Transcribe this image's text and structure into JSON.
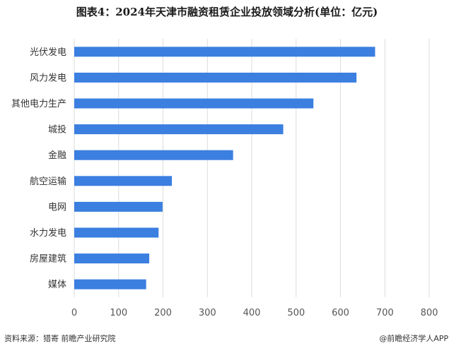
{
  "chart_data": {
    "type": "bar",
    "orientation": "horizontal",
    "title": "图表4：2024年天津市融资租赁企业投放领域分析(单位：亿元)",
    "categories": [
      "光伏发电",
      "风力发电",
      "其他电力生产",
      "城投",
      "金融",
      "航空运输",
      "电网",
      "水力发电",
      "房屋建筑",
      "媒体"
    ],
    "values": [
      678,
      636,
      539,
      471,
      358,
      220,
      199,
      190,
      169,
      162
    ],
    "xlim": [
      0,
      800
    ],
    "xticks": [
      0,
      100,
      200,
      300,
      400,
      500,
      600,
      700,
      800
    ],
    "xlabel": "",
    "ylabel": "",
    "grid": "vertical",
    "bar_color": "#3b7fe0"
  },
  "footer": {
    "source": "资料来源：猎寄 前瞻产业研究院",
    "brand": "@前瞻经济学人APP"
  },
  "colors": {
    "bar": "#3b7fe0",
    "grid": "#dcdcdc",
    "axis_text": "#555555",
    "category_text": "#333333"
  }
}
